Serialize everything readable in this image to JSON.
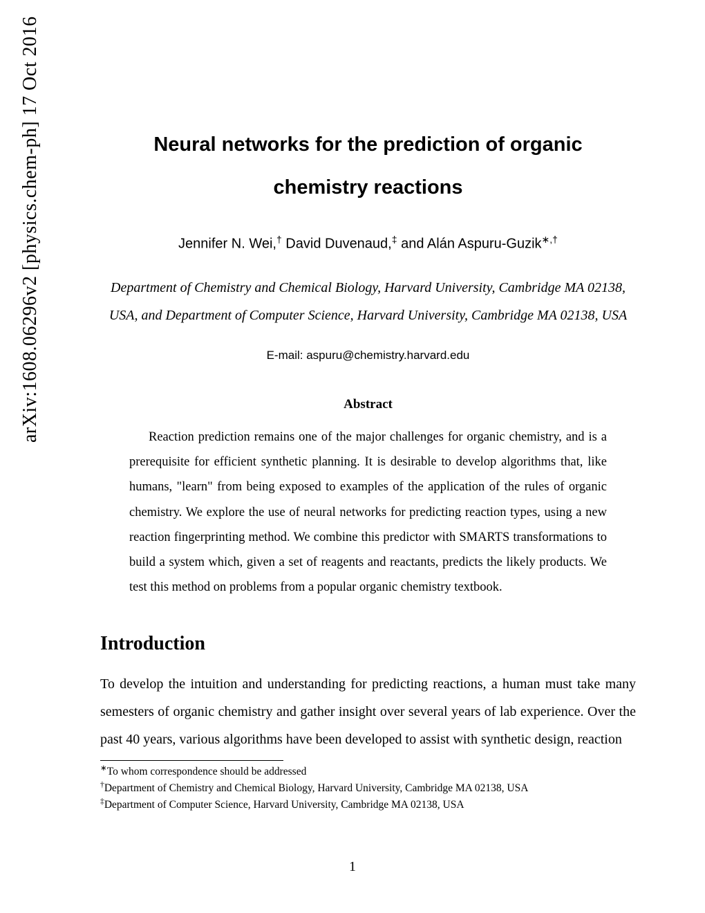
{
  "arxiv": {
    "identifier": "arXiv:1608.06296v2  [physics.chem-ph]  17 Oct 2016"
  },
  "title": {
    "line1": "Neural networks for the prediction of organic",
    "line2": "chemistry reactions"
  },
  "authors": {
    "author1_name": "Jennifer N. Wei,",
    "author1_mark": "†",
    "author2_name": " David Duvenaud,",
    "author2_mark": "‡",
    "author3_prefix": " and Alán Aspuru-Guzik",
    "author3_mark": "∗,†"
  },
  "affiliation": {
    "text": "Department of Chemistry and Chemical Biology, Harvard University, Cambridge MA 02138, USA, and Department of Computer Science, Harvard University, Cambridge MA 02138, USA"
  },
  "email": {
    "label": "E-mail: ",
    "address": "aspuru@chemistry.harvard.edu"
  },
  "abstract": {
    "heading": "Abstract",
    "text": "Reaction prediction remains one of the major challenges for organic chemistry, and is a prerequisite for efficient synthetic planning. It is desirable to develop algorithms that, like humans, \"learn\" from being exposed to examples of the application of the rules of organic chemistry. We explore the use of neural networks for predicting reaction types, using a new reaction fingerprinting method. We combine this predictor with SMARTS transformations to build a system which, given a set of reagents and reactants, predicts the likely products. We test this method on problems from a popular organic chemistry textbook."
  },
  "introduction": {
    "heading": "Introduction",
    "text": "To develop the intuition and understanding for predicting reactions, a human must take many semesters of organic chemistry and gather insight over several years of lab experience. Over the past 40 years, various algorithms have been developed to assist with synthetic design, reaction"
  },
  "footnotes": {
    "f1_mark": "∗",
    "f1_text": "To whom correspondence should be addressed",
    "f2_mark": "†",
    "f2_text": "Department of Chemistry and Chemical Biology, Harvard University, Cambridge MA 02138, USA",
    "f3_mark": "‡",
    "f3_text": "Department of Computer Science, Harvard University, Cambridge MA 02138, USA"
  },
  "page_number": "1",
  "styling": {
    "background_color": "#ffffff",
    "text_color": "#000000",
    "title_fontsize": 29,
    "title_fontweight": "bold",
    "title_fontfamily": "Arial",
    "author_fontsize": 20,
    "affiliation_fontsize": 20,
    "body_fontsize": 20,
    "abstract_fontsize": 18.5,
    "footnote_fontsize": 15.5,
    "section_heading_fontsize": 28,
    "arxiv_fontsize": 28,
    "line_height": 2.0
  }
}
